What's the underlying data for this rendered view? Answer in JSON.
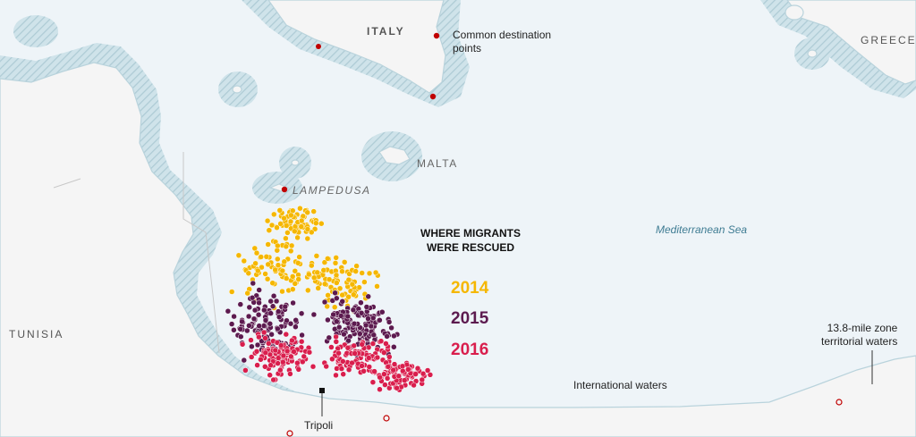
{
  "labels": {
    "italy": "ITALY",
    "greece": "GREECE",
    "tunisia": "TUNISIA",
    "malta": "MALTA",
    "lampedusa": "LAMPEDUSA",
    "sea": "Mediterranean Sea",
    "tripoli": "Tripoli",
    "international": "International waters",
    "destination_line1": "Common destination",
    "destination_line2": "points",
    "zone_line1": "13.8-mile zone",
    "zone_line2": "territorial waters"
  },
  "legend": {
    "title_line1": "WHERE MIGRANTS",
    "title_line2": "WERE RESCUED",
    "years": [
      {
        "label": "2014",
        "color": "#f5b700"
      },
      {
        "label": "2015",
        "color": "#5c1a4f"
      },
      {
        "label": "2016",
        "color": "#d91e4d"
      }
    ]
  },
  "colors": {
    "sea": "#eef4f8",
    "land": "#f5f5f5",
    "coast": "#b9d3dc",
    "border": "#c8c8c8",
    "destination": "#c00000"
  }
}
